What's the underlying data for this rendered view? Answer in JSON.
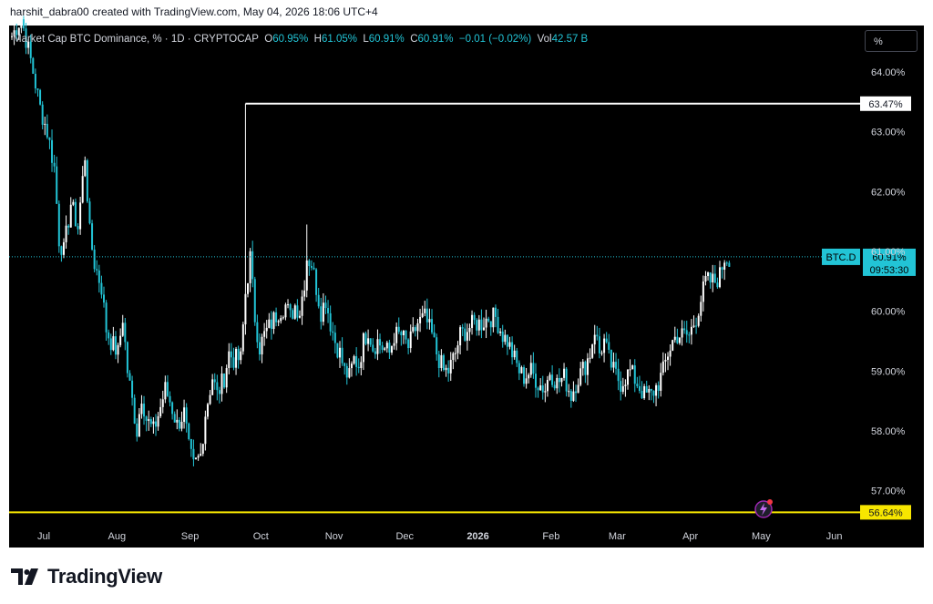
{
  "header": {
    "credit": "harshit_dabra00 created with TradingView.com, May 04, 2026 18:06 UTC+4"
  },
  "legend": {
    "symbol": "Market Cap BTC Dominance, % · 1D · CRYPTOCAP",
    "o_label": "O",
    "o_value": "60.95%",
    "h_label": "H",
    "h_value": "61.05%",
    "l_label": "L",
    "l_value": "60.91%",
    "c_label": "C",
    "c_value": "60.91%",
    "change": "−0.01 (−0.02%)",
    "vol_label": "Vol",
    "vol_value": "42.57 B"
  },
  "unit_button": "%",
  "footer": {
    "brand": "TradingView"
  },
  "colors": {
    "up": "#ffffff",
    "down": "#22ab94",
    "candle_teal": "#22c4d6",
    "resistance": "#ffffff",
    "support": "#f7e600",
    "background": "#000000"
  },
  "chart_data": {
    "type": "candlestick",
    "title": "Market Cap BTC Dominance, % · 1D · CRYPTOCAP",
    "y_axis": {
      "min": 56.6,
      "max": 64.7,
      "ticks": [
        "64.00%",
        "63.00%",
        "62.00%",
        "61.00%",
        "60.00%",
        "59.00%",
        "58.00%",
        "57.00%"
      ],
      "tick_values": [
        64,
        63,
        62,
        61,
        60,
        59,
        58,
        57
      ]
    },
    "x_axis": {
      "labels": [
        "Jul",
        "Aug",
        "Sep",
        "Oct",
        "Nov",
        "Dec",
        "2026",
        "Feb",
        "Mar",
        "Apr",
        "May",
        "Jun"
      ],
      "label_days": [
        0,
        31,
        62,
        92,
        123,
        153,
        184,
        215,
        243,
        274,
        304,
        335
      ],
      "start": "2025-07-01"
    },
    "price_series": [
      [
        0,
        64.6
      ],
      [
        4,
        64.9
      ],
      [
        8,
        64.2
      ],
      [
        12,
        63.4
      ],
      [
        15,
        63.0
      ],
      [
        18,
        62.4
      ],
      [
        20,
        61.2
      ],
      [
        22,
        61.0
      ],
      [
        25,
        61.8
      ],
      [
        28,
        61.4
      ],
      [
        31,
        62.6
      ],
      [
        33,
        61.3
      ],
      [
        35,
        60.8
      ],
      [
        38,
        60.4
      ],
      [
        40,
        59.7
      ],
      [
        42,
        59.5
      ],
      [
        45,
        59.3
      ],
      [
        47,
        59.9
      ],
      [
        49,
        59.0
      ],
      [
        51,
        58.5
      ],
      [
        53,
        58.0
      ],
      [
        55,
        58.6
      ],
      [
        57,
        58.2
      ],
      [
        60,
        58.0
      ],
      [
        63,
        58.4
      ],
      [
        65,
        58.7
      ],
      [
        67,
        58.5
      ],
      [
        70,
        58.1
      ],
      [
        73,
        58.3
      ],
      [
        75,
        57.7
      ],
      [
        77,
        57.4
      ],
      [
        80,
        57.6
      ],
      [
        82,
        58.3
      ],
      [
        85,
        58.9
      ],
      [
        87,
        58.6
      ],
      [
        90,
        58.9
      ],
      [
        92,
        59.3
      ],
      [
        94,
        59.2
      ],
      [
        97,
        59.2
      ],
      [
        99,
        60.3
      ],
      [
        101,
        60.9
      ],
      [
        103,
        59.9
      ],
      [
        105,
        59.4
      ],
      [
        107,
        59.6
      ],
      [
        110,
        59.8
      ],
      [
        113,
        60.0
      ],
      [
        116,
        60.1
      ],
      [
        118,
        59.9
      ],
      [
        120,
        60.1
      ],
      [
        122,
        60.0
      ],
      [
        124,
        60.5
      ],
      [
        125,
        60.9
      ],
      [
        127,
        60.8
      ],
      [
        129,
        60.4
      ],
      [
        131,
        60.0
      ],
      [
        133,
        60.2
      ],
      [
        135,
        59.8
      ],
      [
        137,
        59.5
      ],
      [
        139,
        59.3
      ],
      [
        141,
        59.0
      ],
      [
        143,
        58.9
      ],
      [
        145,
        59.2
      ],
      [
        147,
        59.1
      ],
      [
        149,
        59.5
      ],
      [
        151,
        59.7
      ],
      [
        153,
        59.4
      ],
      [
        155,
        59.5
      ],
      [
        157,
        59.4
      ],
      [
        160,
        59.3
      ],
      [
        162,
        59.6
      ],
      [
        165,
        59.6
      ],
      [
        168,
        59.4
      ],
      [
        170,
        59.6
      ],
      [
        172,
        59.8
      ],
      [
        175,
        59.9
      ],
      [
        178,
        59.6
      ],
      [
        180,
        59.3
      ],
      [
        183,
        59.0
      ],
      [
        185,
        59.0
      ],
      [
        188,
        59.3
      ],
      [
        190,
        59.6
      ],
      [
        193,
        59.7
      ],
      [
        196,
        59.8
      ],
      [
        199,
        59.8
      ],
      [
        202,
        59.9
      ],
      [
        205,
        59.9
      ],
      [
        208,
        59.6
      ],
      [
        210,
        59.5
      ],
      [
        213,
        59.2
      ],
      [
        215,
        59.0
      ],
      [
        217,
        58.9
      ],
      [
        220,
        59.0
      ],
      [
        223,
        58.8
      ],
      [
        226,
        58.7
      ],
      [
        228,
        59.0
      ],
      [
        231,
        58.8
      ],
      [
        234,
        58.9
      ],
      [
        237,
        58.6
      ],
      [
        240,
        58.9
      ],
      [
        243,
        59.1
      ],
      [
        245,
        59.3
      ],
      [
        247,
        59.7
      ],
      [
        249,
        59.3
      ],
      [
        251,
        59.5
      ],
      [
        253,
        59.2
      ],
      [
        255,
        59.0
      ],
      [
        258,
        58.8
      ],
      [
        260,
        58.9
      ],
      [
        262,
        59.0
      ],
      [
        265,
        58.8
      ],
      [
        268,
        58.6
      ],
      [
        271,
        58.6
      ],
      [
        274,
        58.8
      ],
      [
        276,
        59.0
      ],
      [
        278,
        59.3
      ],
      [
        280,
        59.5
      ],
      [
        282,
        59.6
      ],
      [
        285,
        59.6
      ],
      [
        287,
        59.6
      ],
      [
        290,
        59.9
      ],
      [
        292,
        60.2
      ],
      [
        294,
        60.5
      ],
      [
        296,
        60.5
      ],
      [
        298,
        60.5
      ],
      [
        300,
        60.6
      ],
      [
        302,
        60.9
      ],
      [
        304,
        60.9
      ]
    ],
    "high_spikes": [
      {
        "day": 99,
        "value": 63.47
      },
      {
        "day": 125,
        "value": 61.45
      }
    ],
    "lines": [
      {
        "label": "63.47%",
        "value": 63.47,
        "color": "#ffffff",
        "from_day": 99
      },
      {
        "label": "56.64%",
        "value": 56.64,
        "color": "#f7e600",
        "from_day": -5
      }
    ],
    "current": {
      "symbol": "BTC.D",
      "value": 60.91,
      "price_label": "60.91%",
      "countdown": "09:53:30"
    }
  }
}
